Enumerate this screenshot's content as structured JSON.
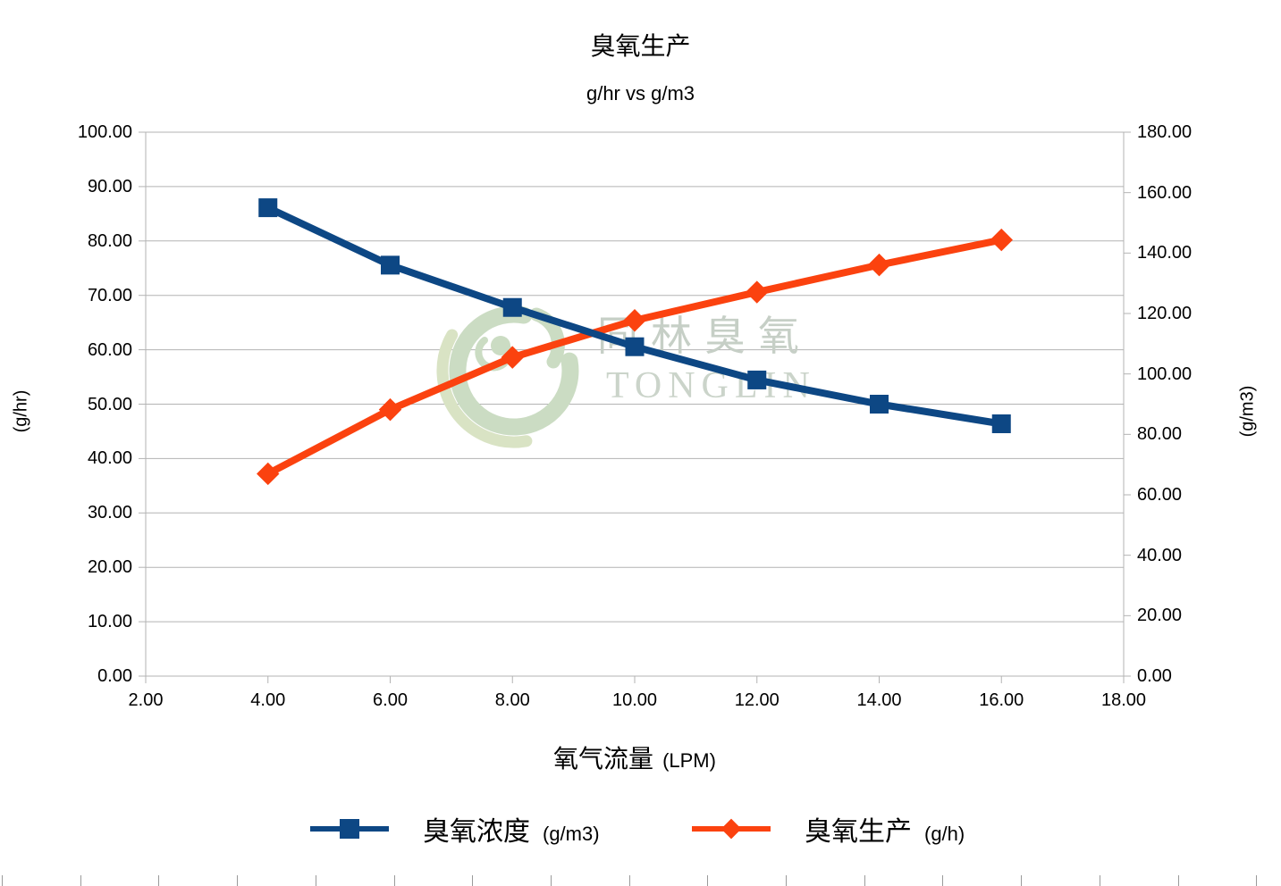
{
  "chart_data": {
    "type": "line",
    "title": "臭氧生产",
    "subtitle": "g/hr vs g/m3",
    "x": [
      4.0,
      6.0,
      8.0,
      10.0,
      12.0,
      14.0,
      16.0
    ],
    "xlabel": "氧气流量 (LPM)",
    "xlabel_cjk": "氧气流量",
    "xlabel_unit": "(LPM)",
    "x_axis": {
      "min": 2,
      "max": 18,
      "step": 2
    },
    "y_left_axis": {
      "label": "(g/hr)",
      "min": 0,
      "max": 100,
      "step": 10
    },
    "y_right_axis": {
      "label": "(g/m3)",
      "min": 0,
      "max": 180,
      "step": 20
    },
    "grid": "horizontal",
    "legend_position": "bottom",
    "series": [
      {
        "name": "臭氧浓度",
        "unit": "(g/m3)",
        "axis": "right",
        "marker": "square",
        "color": "#0d4784",
        "values": [
          155,
          136,
          122,
          109,
          98,
          90,
          83.5
        ]
      },
      {
        "name": "臭氧生产",
        "unit": "(g/h)",
        "axis": "left",
        "marker": "diamond",
        "color": "#fb420f",
        "values": [
          37.2,
          49.0,
          58.6,
          65.4,
          70.6,
          75.6,
          80.2
        ]
      }
    ]
  },
  "watermark": {
    "cjk": "同林臭氧",
    "latin": "TONGLIN"
  },
  "colors": {
    "series1": "#0d4784",
    "series2": "#fb420f",
    "gridline": "#b3b3b3",
    "axis_line": "#b3b3b3",
    "ruler_tick": "#9a9a9a",
    "logo_green": "#cbdcc3",
    "logo_green_light": "#d9e3c4",
    "watermark_cjk": "#c6cfc6",
    "watermark_latin": "#cbd4ca"
  }
}
